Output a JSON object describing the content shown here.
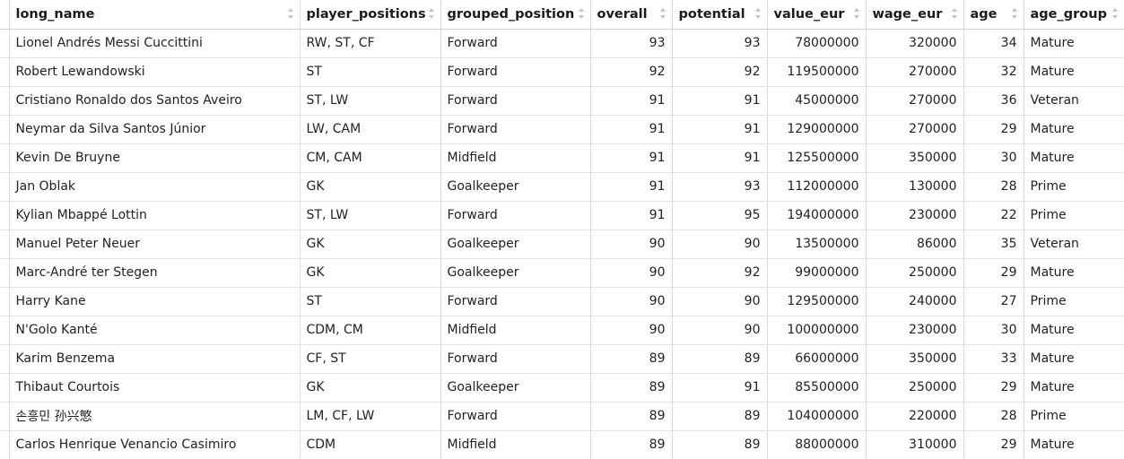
{
  "columns": [
    {
      "key": "long_name",
      "label": "long_name",
      "numeric": false
    },
    {
      "key": "player_positions",
      "label": "player_positions",
      "numeric": false
    },
    {
      "key": "grouped_position",
      "label": "grouped_position",
      "numeric": false
    },
    {
      "key": "overall",
      "label": "overall",
      "numeric": true
    },
    {
      "key": "potential",
      "label": "potential",
      "numeric": true
    },
    {
      "key": "value_eur",
      "label": "value_eur",
      "numeric": true
    },
    {
      "key": "wage_eur",
      "label": "wage_eur",
      "numeric": true
    },
    {
      "key": "age",
      "label": "age",
      "numeric": true
    },
    {
      "key": "age_group",
      "label": "age_group",
      "numeric": false
    }
  ],
  "rows": [
    [
      "Lionel Andrés Messi Cuccittini",
      "RW, ST, CF",
      "Forward",
      "93",
      "93",
      "78000000",
      "320000",
      "34",
      "Mature"
    ],
    [
      "Robert Lewandowski",
      "ST",
      "Forward",
      "92",
      "92",
      "119500000",
      "270000",
      "32",
      "Mature"
    ],
    [
      "Cristiano Ronaldo dos Santos Aveiro",
      "ST, LW",
      "Forward",
      "91",
      "91",
      "45000000",
      "270000",
      "36",
      "Veteran"
    ],
    [
      "Neymar da Silva Santos Júnior",
      "LW, CAM",
      "Forward",
      "91",
      "91",
      "129000000",
      "270000",
      "29",
      "Mature"
    ],
    [
      "Kevin De Bruyne",
      "CM, CAM",
      "Midfield",
      "91",
      "91",
      "125500000",
      "350000",
      "30",
      "Mature"
    ],
    [
      "Jan Oblak",
      "GK",
      "Goalkeeper",
      "91",
      "93",
      "112000000",
      "130000",
      "28",
      "Prime"
    ],
    [
      "Kylian Mbappé Lottin",
      "ST, LW",
      "Forward",
      "91",
      "95",
      "194000000",
      "230000",
      "22",
      "Prime"
    ],
    [
      "Manuel Peter Neuer",
      "GK",
      "Goalkeeper",
      "90",
      "90",
      "13500000",
      "86000",
      "35",
      "Veteran"
    ],
    [
      "Marc-André ter Stegen",
      "GK",
      "Goalkeeper",
      "90",
      "92",
      "99000000",
      "250000",
      "29",
      "Mature"
    ],
    [
      "Harry Kane",
      "ST",
      "Forward",
      "90",
      "90",
      "129500000",
      "240000",
      "27",
      "Prime"
    ],
    [
      "N'Golo Kanté",
      "CDM, CM",
      "Midfield",
      "90",
      "90",
      "100000000",
      "230000",
      "30",
      "Mature"
    ],
    [
      "Karim Benzema",
      "CF, ST",
      "Forward",
      "89",
      "89",
      "66000000",
      "350000",
      "33",
      "Mature"
    ],
    [
      "Thibaut Courtois",
      "GK",
      "Goalkeeper",
      "89",
      "91",
      "85500000",
      "250000",
      "29",
      "Mature"
    ],
    [
      "손흥민 孙兴慜",
      "LM, CF, LW",
      "Forward",
      "89",
      "89",
      "104000000",
      "220000",
      "28",
      "Prime"
    ],
    [
      "Carlos Henrique Venancio Casimiro",
      "CDM",
      "Midfield",
      "89",
      "89",
      "88000000",
      "310000",
      "29",
      "Mature"
    ]
  ]
}
